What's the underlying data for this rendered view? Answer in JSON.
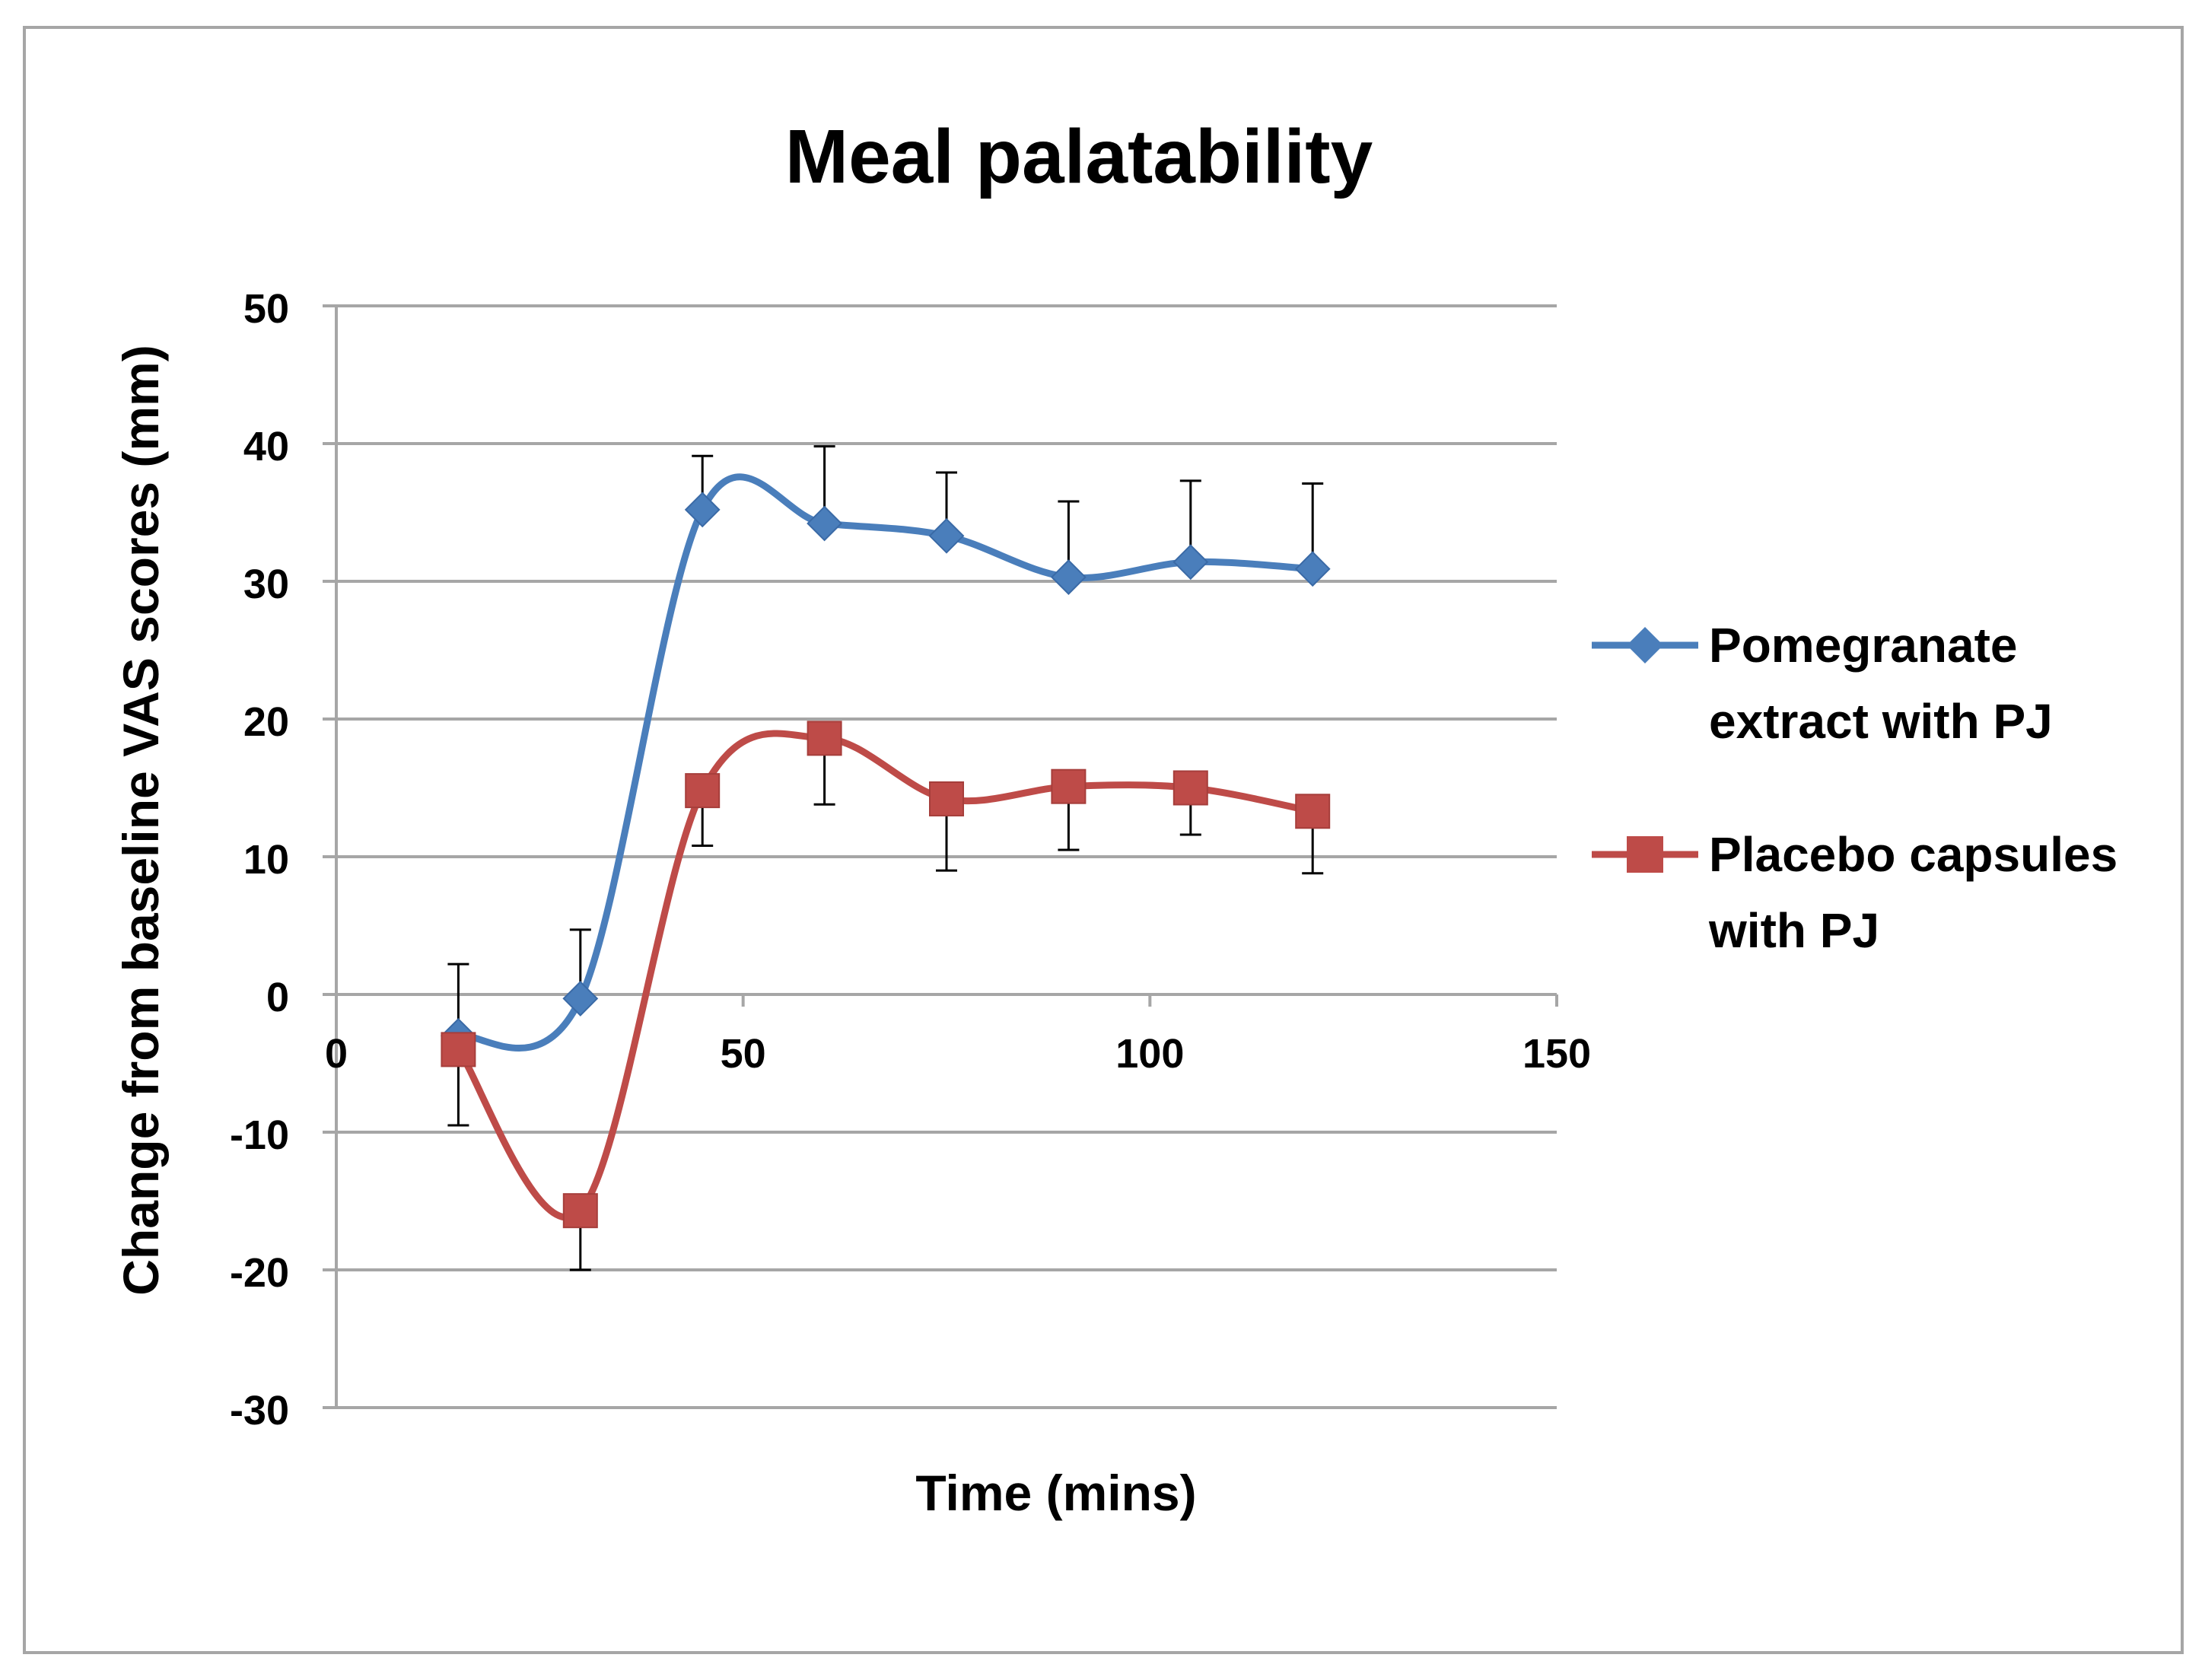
{
  "chart_data": {
    "type": "line",
    "title": "Meal palatability",
    "xlabel": "Time (mins)",
    "ylabel": "Change from baseline VAS scores (mm)",
    "xlim": [
      0,
      150
    ],
    "ylim": [
      -30,
      50
    ],
    "x_ticks": [
      0,
      50,
      100,
      150
    ],
    "y_ticks": [
      -30,
      -20,
      -10,
      0,
      10,
      20,
      30,
      40,
      50
    ],
    "x_tick_labels": [
      "0",
      "50",
      "100",
      "150"
    ],
    "y_tick_labels": [
      "-30",
      "-20",
      "-10",
      "0",
      "10",
      "20",
      "30",
      "40",
      "50"
    ],
    "grid": "horizontal",
    "legend_position": "right",
    "series": [
      {
        "name": "Pomegranate extract with PJ",
        "color": "#4a7ebb",
        "marker": "diamond",
        "x": [
          15,
          30,
          45,
          60,
          75,
          90,
          105,
          120
        ],
        "y": [
          -3,
          -0.3,
          35.2,
          34.2,
          33.3,
          30.3,
          31.4,
          30.9
        ],
        "error_upper": [
          5.2,
          5,
          3.9,
          5.6,
          4.6,
          5.5,
          5.9,
          6.2
        ]
      },
      {
        "name": "Placebo capsules with PJ",
        "color": "#be4b48",
        "marker": "square",
        "x": [
          15,
          30,
          45,
          60,
          75,
          90,
          105,
          120
        ],
        "y": [
          -4,
          -15.7,
          14.8,
          18.6,
          14.2,
          15.1,
          15,
          13.3
        ],
        "error_lower": [
          5.5,
          4.3,
          4,
          4.8,
          5.2,
          4.6,
          3.4,
          4.5
        ]
      }
    ]
  }
}
